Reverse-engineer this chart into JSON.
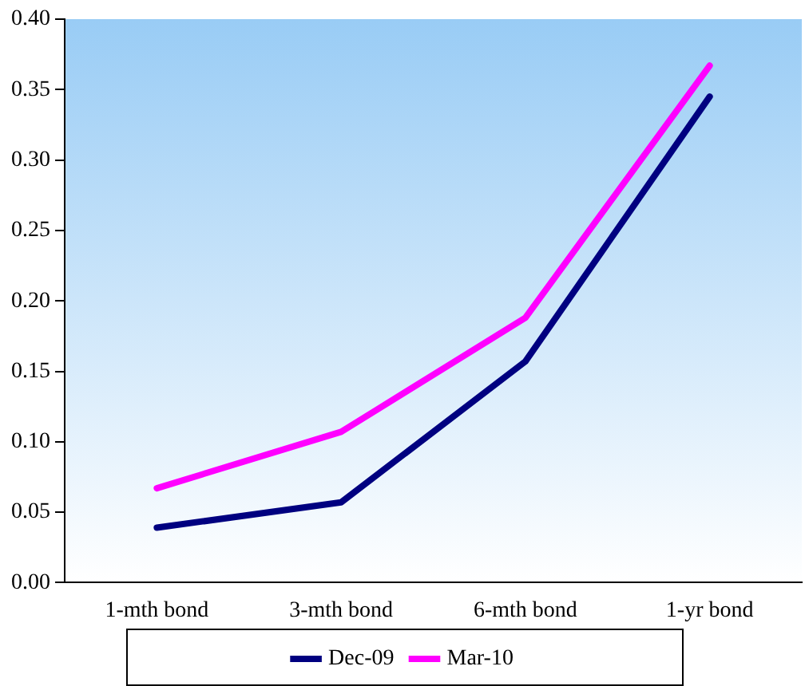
{
  "chart_data": {
    "type": "line",
    "categories": [
      "1-mth bond",
      "3-mth bond",
      "6-mth bond",
      "1-yr bond"
    ],
    "series": [
      {
        "name": "Dec-09",
        "color": "#000080",
        "values": [
          0.039,
          0.057,
          0.157,
          0.345
        ]
      },
      {
        "name": "Mar-10",
        "color": "#ff00ff",
        "values": [
          0.067,
          0.107,
          0.188,
          0.367
        ]
      }
    ],
    "ylim": [
      0,
      0.4
    ],
    "yticks": [
      {
        "value": 0,
        "label": "0.00"
      },
      {
        "value": 0.05,
        "label": "0.05"
      },
      {
        "value": 0.1,
        "label": "0.10"
      },
      {
        "value": 0.15,
        "label": "0.15"
      },
      {
        "value": 0.2,
        "label": "0.20"
      },
      {
        "value": 0.25,
        "label": "0.25"
      },
      {
        "value": 0.3,
        "label": "0.30"
      },
      {
        "value": 0.35,
        "label": "0.35"
      },
      {
        "value": 0.4,
        "label": "0.40"
      }
    ],
    "grid": false,
    "legend": "bottom",
    "marker": "none",
    "line_style": "solid"
  }
}
